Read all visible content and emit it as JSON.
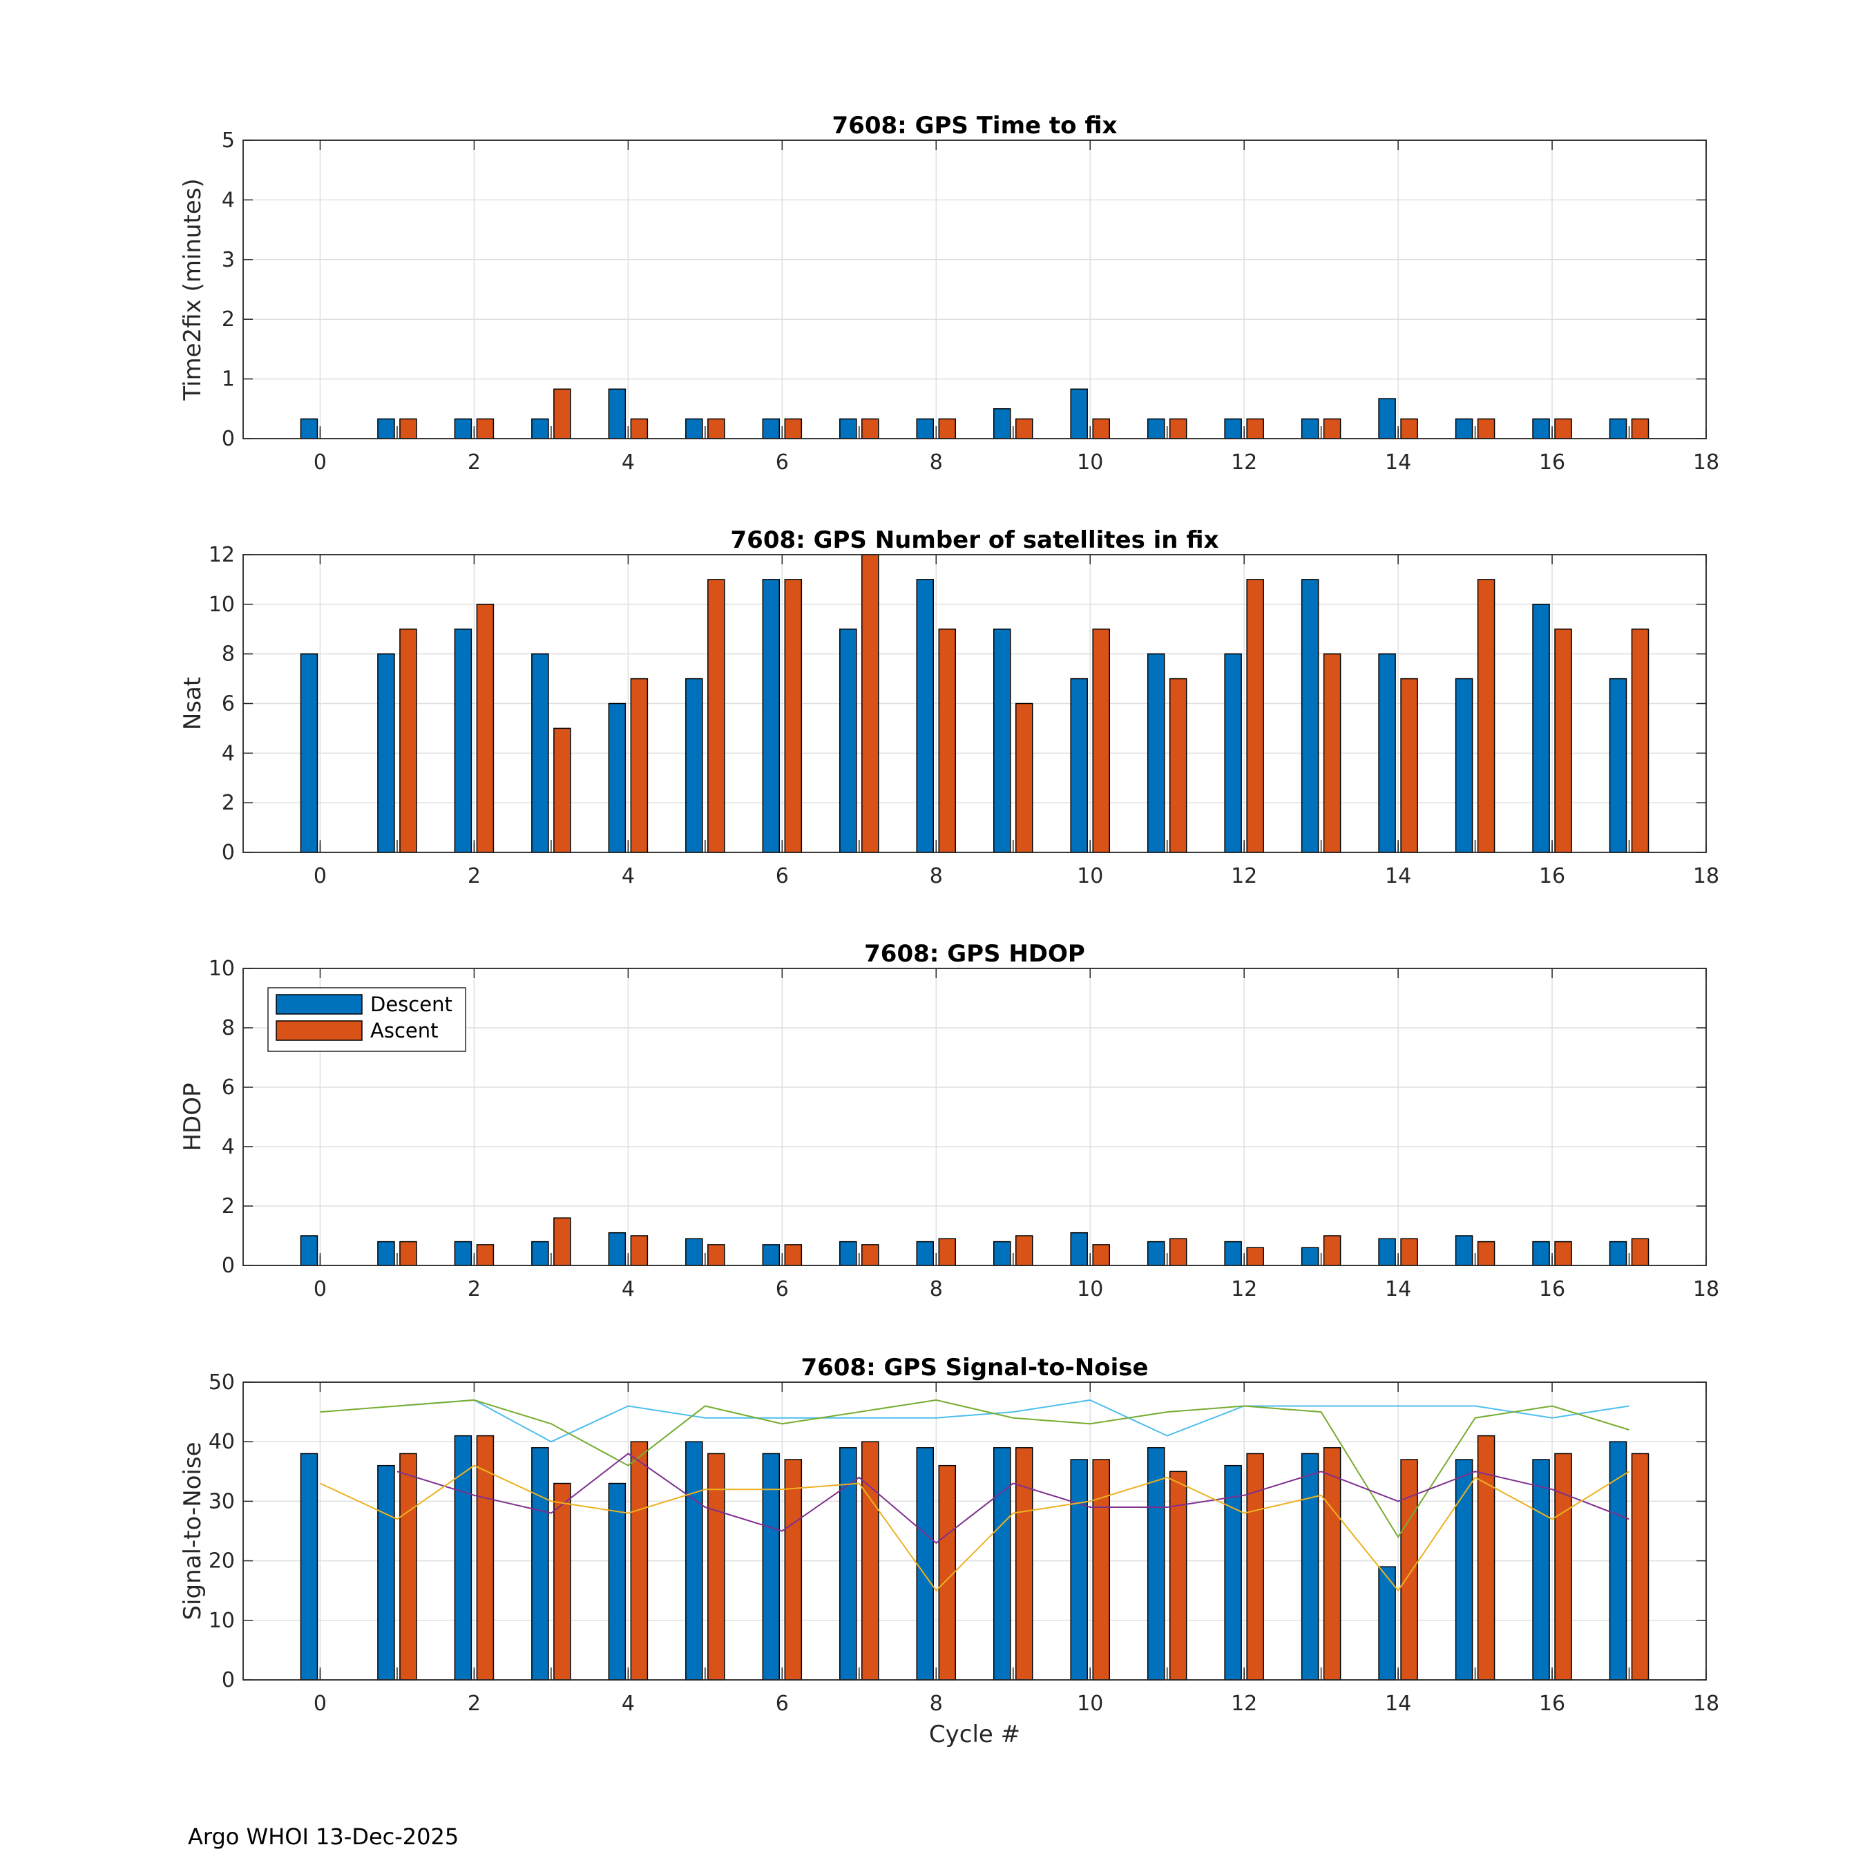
{
  "footer": "Argo WHOI 13-Dec-2025",
  "legend": {
    "location": "top-left of HDOP panel",
    "entries": [
      "Descent",
      "Ascent"
    ]
  },
  "colors": {
    "descent": "#0072BD",
    "ascent": "#D95319",
    "snr_lines": [
      "#4DBEEE",
      "#77AC30",
      "#7E2F8E",
      "#EDB120"
    ]
  },
  "chart_data": [
    {
      "type": "bar",
      "title": "7608: GPS Time to fix",
      "xlabel": "",
      "ylabel": "Time2fix (minutes)",
      "xlim": [
        -1,
        18
      ],
      "ylim": [
        0,
        5
      ],
      "xticks": [
        0,
        2,
        4,
        6,
        8,
        10,
        12,
        14,
        16,
        18
      ],
      "yticks": [
        0,
        1,
        2,
        3,
        4,
        5
      ],
      "grid": true,
      "x": [
        0,
        1,
        2,
        3,
        4,
        5,
        6,
        7,
        8,
        9,
        10,
        11,
        12,
        13,
        14,
        15,
        16,
        17
      ],
      "series": [
        {
          "name": "Descent",
          "values": [
            0.33,
            0.33,
            0.33,
            0.33,
            0.83,
            0.33,
            0.33,
            0.33,
            0.33,
            0.5,
            0.83,
            0.33,
            0.33,
            0.33,
            0.67,
            0.33,
            0.33,
            0.33
          ]
        },
        {
          "name": "Ascent",
          "values": [
            null,
            0.33,
            0.33,
            0.83,
            0.33,
            0.33,
            0.33,
            0.33,
            0.33,
            0.33,
            0.33,
            0.33,
            0.33,
            0.33,
            0.33,
            0.33,
            0.33,
            0.33
          ]
        }
      ]
    },
    {
      "type": "bar",
      "title": "7608: GPS Number of satellites in fix",
      "xlabel": "",
      "ylabel": "Nsat",
      "xlim": [
        -1,
        18
      ],
      "ylim": [
        0,
        12
      ],
      "xticks": [
        0,
        2,
        4,
        6,
        8,
        10,
        12,
        14,
        16,
        18
      ],
      "yticks": [
        0,
        2,
        4,
        6,
        8,
        10,
        12
      ],
      "grid": true,
      "x": [
        0,
        1,
        2,
        3,
        4,
        5,
        6,
        7,
        8,
        9,
        10,
        11,
        12,
        13,
        14,
        15,
        16,
        17
      ],
      "series": [
        {
          "name": "Descent",
          "values": [
            8,
            8,
            9,
            8,
            6,
            7,
            11,
            9,
            11,
            9,
            7,
            8,
            8,
            11,
            8,
            7,
            10,
            7
          ]
        },
        {
          "name": "Ascent",
          "values": [
            null,
            9,
            10,
            5,
            7,
            11,
            11,
            12,
            9,
            6,
            9,
            7,
            11,
            8,
            7,
            11,
            9,
            9
          ]
        }
      ]
    },
    {
      "type": "bar",
      "title": "7608: GPS HDOP",
      "xlabel": "",
      "ylabel": "HDOP",
      "xlim": [
        -1,
        18
      ],
      "ylim": [
        0,
        10
      ],
      "xticks": [
        0,
        2,
        4,
        6,
        8,
        10,
        12,
        14,
        16,
        18
      ],
      "yticks": [
        0,
        2,
        4,
        6,
        8,
        10
      ],
      "grid": true,
      "legend": true,
      "x": [
        0,
        1,
        2,
        3,
        4,
        5,
        6,
        7,
        8,
        9,
        10,
        11,
        12,
        13,
        14,
        15,
        16,
        17
      ],
      "series": [
        {
          "name": "Descent",
          "values": [
            1.0,
            0.8,
            0.8,
            0.8,
            1.1,
            0.9,
            0.7,
            0.8,
            0.8,
            0.8,
            1.1,
            0.8,
            0.8,
            0.6,
            0.9,
            1.0,
            0.8,
            0.8
          ]
        },
        {
          "name": "Ascent",
          "values": [
            null,
            0.8,
            0.7,
            1.6,
            1.0,
            0.7,
            0.7,
            0.7,
            0.9,
            1.0,
            0.7,
            0.9,
            0.6,
            1.0,
            0.9,
            0.8,
            0.8,
            0.9
          ]
        }
      ]
    },
    {
      "type": "bar",
      "title": "7608: GPS Signal-to-Noise",
      "xlabel": "Cycle #",
      "ylabel": "Signal-to-Noise",
      "xlim": [
        -1,
        18
      ],
      "ylim": [
        0,
        50
      ],
      "xticks": [
        0,
        2,
        4,
        6,
        8,
        10,
        12,
        14,
        16,
        18
      ],
      "yticks": [
        0,
        10,
        20,
        30,
        40,
        50
      ],
      "grid": true,
      "x": [
        0,
        1,
        2,
        3,
        4,
        5,
        6,
        7,
        8,
        9,
        10,
        11,
        12,
        13,
        14,
        15,
        16,
        17
      ],
      "series": [
        {
          "name": "Descent",
          "values": [
            38,
            36,
            41,
            39,
            33,
            40,
            38,
            39,
            39,
            39,
            37,
            39,
            36,
            38,
            19,
            37,
            37,
            40
          ]
        },
        {
          "name": "Ascent",
          "values": [
            null,
            38,
            41,
            33,
            40,
            38,
            37,
            40,
            36,
            39,
            37,
            35,
            38,
            39,
            37,
            41,
            38,
            38
          ]
        }
      ],
      "lines": [
        {
          "color": "#4DBEEE",
          "x": [
            1,
            2,
            3,
            4,
            5,
            6,
            7,
            8,
            9,
            10,
            11,
            12,
            13,
            14,
            15,
            16,
            17
          ],
          "values": [
            46,
            47,
            40,
            46,
            44,
            44,
            44,
            44,
            45,
            47,
            41,
            46,
            46,
            46,
            46,
            44,
            46
          ]
        },
        {
          "color": "#77AC30",
          "x": [
            0,
            1,
            2,
            3,
            4,
            5,
            6,
            7,
            8,
            9,
            10,
            11,
            12,
            13,
            14,
            15,
            16,
            17
          ],
          "values": [
            45,
            46,
            47,
            43,
            36,
            46,
            43,
            45,
            47,
            44,
            43,
            45,
            46,
            45,
            24,
            44,
            46,
            42
          ]
        },
        {
          "color": "#7E2F8E",
          "x": [
            1,
            2,
            3,
            4,
            5,
            6,
            7,
            8,
            9,
            10,
            11,
            12,
            13,
            14,
            15,
            16,
            17
          ],
          "values": [
            35,
            31,
            28,
            38,
            29,
            25,
            34,
            23,
            33,
            29,
            29,
            31,
            35,
            30,
            35,
            32,
            27
          ]
        },
        {
          "color": "#EDB120",
          "x": [
            0,
            1,
            2,
            3,
            4,
            5,
            6,
            7,
            8,
            9,
            10,
            11,
            12,
            13,
            14,
            15,
            16,
            17
          ],
          "values": [
            33,
            27,
            36,
            30,
            28,
            32,
            32,
            33,
            15,
            28,
            30,
            34,
            28,
            31,
            15,
            34,
            27,
            35
          ]
        }
      ]
    }
  ]
}
